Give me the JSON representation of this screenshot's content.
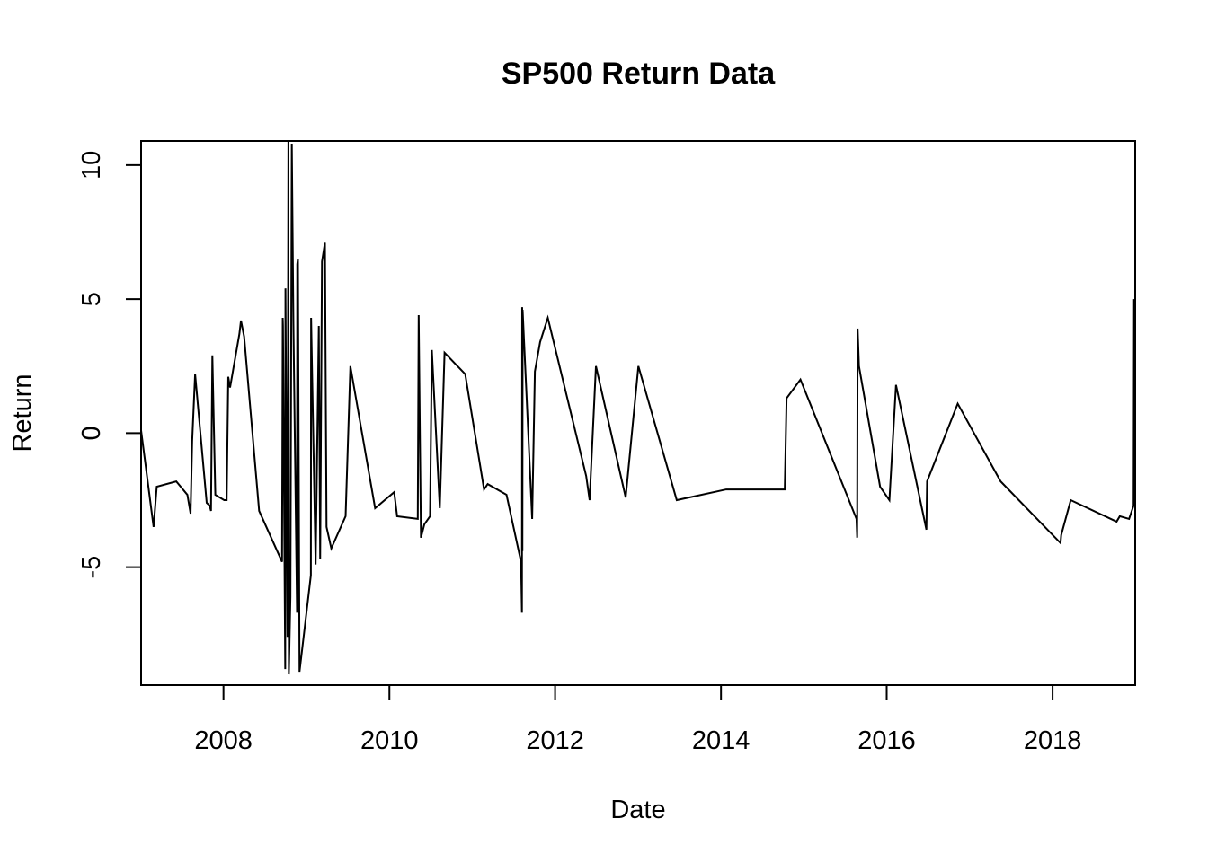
{
  "chart_data": {
    "type": "line",
    "title": "SP500 Return Data",
    "xlabel": "Date",
    "ylabel": "Return",
    "x_range": [
      "2007-01-03",
      "2018-12-31"
    ],
    "ylim": [
      -9.4,
      10.9
    ],
    "x_ticks": [
      {
        "date": "2008-01-01",
        "label": "2008"
      },
      {
        "date": "2010-01-01",
        "label": "2010"
      },
      {
        "date": "2012-01-01",
        "label": "2012"
      },
      {
        "date": "2014-01-01",
        "label": "2014"
      },
      {
        "date": "2016-01-01",
        "label": "2016"
      },
      {
        "date": "2018-01-01",
        "label": "2018"
      }
    ],
    "y_ticks": [
      {
        "value": -5,
        "label": "-5"
      },
      {
        "value": 0,
        "label": "0"
      },
      {
        "value": 5,
        "label": "5"
      },
      {
        "value": 10,
        "label": "10"
      }
    ],
    "grid": false,
    "legend": "none",
    "line_color": "#000000",
    "series": [
      {
        "x": [
          "2007-01-03",
          "2007-02-27",
          "2007-03-13",
          "2007-06-07",
          "2007-07-26",
          "2007-08-09",
          "2007-08-16",
          "2007-08-29",
          "2007-10-19",
          "2007-11-01",
          "2007-11-07",
          "2007-11-13",
          "2007-11-26",
          "2008-01-04",
          "2008-01-15",
          "2008-01-22",
          "2008-01-30",
          "2008-03-11",
          "2008-03-18",
          "2008-04-01",
          "2008-06-06",
          "2008-09-15",
          "2008-09-18",
          "2008-09-19",
          "2008-09-29",
          "2008-09-30",
          "2008-10-09",
          "2008-10-13",
          "2008-10-15",
          "2008-10-22",
          "2008-10-28",
          "2008-11-04",
          "2008-11-20",
          "2008-11-21",
          "2008-11-24",
          "2008-12-01",
          "2009-01-20",
          "2009-01-21",
          "2009-02-10",
          "2009-02-24",
          "2009-03-02",
          "2009-03-10",
          "2009-03-23",
          "2009-03-30",
          "2009-04-20",
          "2009-06-22",
          "2009-07-13",
          "2009-10-30",
          "2010-01-22",
          "2010-02-04",
          "2010-05-06",
          "2010-05-10",
          "2010-05-20",
          "2010-06-04",
          "2010-06-29",
          "2010-07-07",
          "2010-08-11",
          "2010-09-01",
          "2010-12-01",
          "2011-02-22",
          "2011-03-10",
          "2011-06-01",
          "2011-08-04",
          "2011-08-08",
          "2011-08-09",
          "2011-08-10",
          "2011-08-11",
          "2011-09-22",
          "2011-10-04",
          "2011-10-27",
          "2011-11-30",
          "2012-05-17",
          "2012-06-01",
          "2012-06-29",
          "2012-11-07",
          "2013-01-02",
          "2013-06-20",
          "2014-01-24",
          "2014-04-10",
          "2014-10-09",
          "2014-10-17",
          "2014-12-17",
          "2015-08-21",
          "2015-08-24",
          "2015-08-26",
          "2015-09-01",
          "2015-12-03",
          "2016-01-13",
          "2016-02-11",
          "2016-06-24",
          "2016-06-27",
          "2016-11-09",
          "2017-05-17",
          "2018-02-05",
          "2018-02-08",
          "2018-03-22",
          "2018-10-10",
          "2018-10-24",
          "2018-12-04",
          "2018-12-24",
          "2018-12-26",
          "2018-12-31"
        ],
        "values": [
          0.1,
          -3.5,
          -2.0,
          -1.8,
          -2.3,
          -3.0,
          -0.3,
          2.2,
          -2.6,
          -2.7,
          -2.9,
          2.9,
          -2.3,
          -2.5,
          -2.5,
          2.1,
          1.7,
          3.7,
          4.2,
          3.6,
          -2.9,
          -4.8,
          4.3,
          4.0,
          -8.8,
          5.4,
          -7.6,
          11.0,
          -9.0,
          -6.1,
          10.8,
          4.1,
          -6.7,
          6.3,
          6.5,
          -8.9,
          -5.3,
          4.3,
          -4.9,
          4.0,
          -4.7,
          6.4,
          7.1,
          -3.5,
          -4.3,
          -3.1,
          2.5,
          -2.8,
          -2.2,
          -3.1,
          -3.2,
          4.4,
          -3.9,
          -3.4,
          -3.1,
          3.1,
          -2.8,
          3.0,
          2.2,
          -2.1,
          -1.9,
          -2.3,
          -4.8,
          -6.7,
          4.7,
          -4.4,
          4.6,
          -3.2,
          2.3,
          3.4,
          4.3,
          -1.6,
          -2.5,
          2.5,
          -2.4,
          2.5,
          -2.5,
          -2.1,
          -2.1,
          -2.1,
          1.3,
          2.0,
          -3.2,
          -3.9,
          3.9,
          2.5,
          -2.0,
          -2.5,
          1.8,
          -3.6,
          -1.8,
          1.1,
          -1.8,
          -4.1,
          -3.8,
          -2.5,
          -3.3,
          -3.1,
          -3.2,
          -2.7,
          5.0,
          0.8
        ]
      }
    ]
  }
}
